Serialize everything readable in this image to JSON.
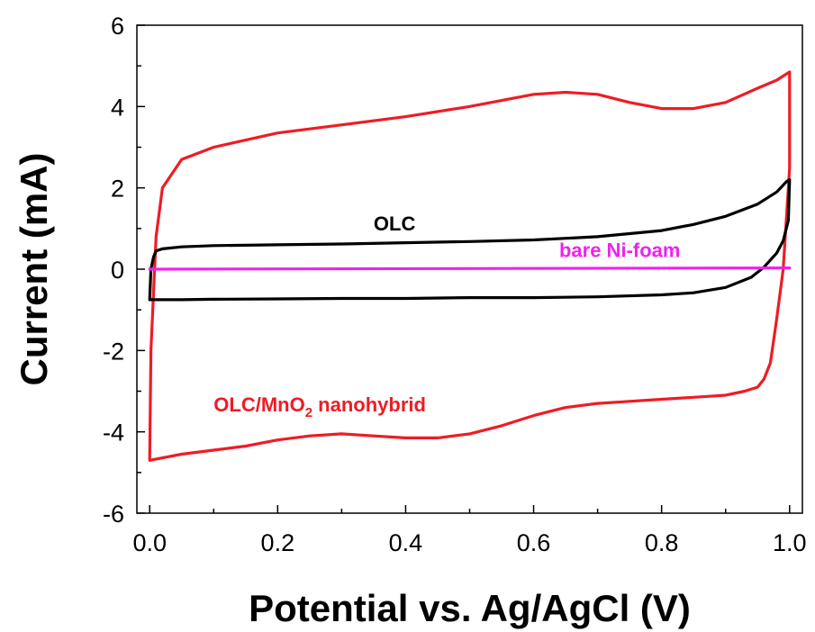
{
  "chart_data": {
    "type": "line",
    "xlabel": "Potential vs. Ag/AgCl (V)",
    "ylabel": "Current (mA)",
    "xlim": [
      -0.02,
      1.02
    ],
    "ylim": [
      -6,
      6
    ],
    "x_ticks": [
      "0.0",
      "0.2",
      "0.4",
      "0.6",
      "0.8",
      "1.0"
    ],
    "x_tick_values": [
      0.0,
      0.2,
      0.4,
      0.6,
      0.8,
      1.0
    ],
    "y_ticks": [
      "-6",
      "-4",
      "-2",
      "0",
      "2",
      "4",
      "6"
    ],
    "y_tick_values": [
      -6,
      -4,
      -2,
      0,
      2,
      4,
      6
    ],
    "grid": false,
    "series": [
      {
        "name": "OLC/MnO2 nanohybrid",
        "label_main": "OLC/MnO",
        "label_sub": "2",
        "label_tail": " nanohybrid",
        "color": "#ee1c25",
        "x": [
          0.0,
          0.002,
          0.01,
          0.02,
          0.05,
          0.1,
          0.2,
          0.3,
          0.4,
          0.5,
          0.6,
          0.65,
          0.7,
          0.75,
          0.8,
          0.85,
          0.9,
          0.95,
          0.98,
          1.0,
          1.0,
          0.99,
          0.98,
          0.97,
          0.96,
          0.95,
          0.93,
          0.9,
          0.85,
          0.8,
          0.75,
          0.7,
          0.65,
          0.6,
          0.55,
          0.5,
          0.45,
          0.4,
          0.35,
          0.3,
          0.25,
          0.2,
          0.15,
          0.1,
          0.05,
          0.0
        ],
        "y": [
          -4.7,
          -2.0,
          0.8,
          2.0,
          2.7,
          3.0,
          3.35,
          3.55,
          3.75,
          4.0,
          4.3,
          4.35,
          4.3,
          4.1,
          3.95,
          3.95,
          4.1,
          4.45,
          4.65,
          4.85,
          2.5,
          0.0,
          -1.2,
          -2.3,
          -2.7,
          -2.9,
          -3.0,
          -3.1,
          -3.15,
          -3.2,
          -3.25,
          -3.3,
          -3.4,
          -3.6,
          -3.85,
          -4.05,
          -4.15,
          -4.15,
          -4.1,
          -4.05,
          -4.1,
          -4.2,
          -4.35,
          -4.45,
          -4.55,
          -4.7
        ]
      },
      {
        "name": "OLC",
        "color": "#000000",
        "x": [
          0.0,
          0.002,
          0.006,
          0.01,
          0.02,
          0.05,
          0.1,
          0.2,
          0.3,
          0.4,
          0.5,
          0.6,
          0.7,
          0.8,
          0.85,
          0.9,
          0.95,
          0.98,
          0.995,
          1.0,
          0.998,
          0.99,
          0.98,
          0.96,
          0.94,
          0.9,
          0.85,
          0.8,
          0.7,
          0.6,
          0.5,
          0.4,
          0.3,
          0.2,
          0.1,
          0.05,
          0.0
        ],
        "y": [
          -0.75,
          0.0,
          0.3,
          0.45,
          0.5,
          0.55,
          0.58,
          0.6,
          0.62,
          0.65,
          0.68,
          0.72,
          0.8,
          0.95,
          1.1,
          1.3,
          1.6,
          1.9,
          2.15,
          2.2,
          1.2,
          0.7,
          0.4,
          0.05,
          -0.2,
          -0.45,
          -0.58,
          -0.63,
          -0.68,
          -0.7,
          -0.7,
          -0.72,
          -0.72,
          -0.73,
          -0.74,
          -0.75,
          -0.75
        ]
      },
      {
        "name": "bare Ni-foam",
        "color": "#ee22ee",
        "x": [
          0.0,
          1.0
        ],
        "y": [
          0.0,
          0.03
        ]
      }
    ],
    "annotations": [
      {
        "text": "OLC",
        "series": "OLC",
        "x": 0.35,
        "y": 0.95
      },
      {
        "text": "bare Ni-foam",
        "series": "bare Ni-foam",
        "x": 0.64,
        "y": 0.3
      },
      {
        "text": "OLC/MnO2 nanohybrid",
        "series": "OLC/MnO2 nanohybrid",
        "x": 0.1,
        "y": -3.5
      }
    ]
  }
}
